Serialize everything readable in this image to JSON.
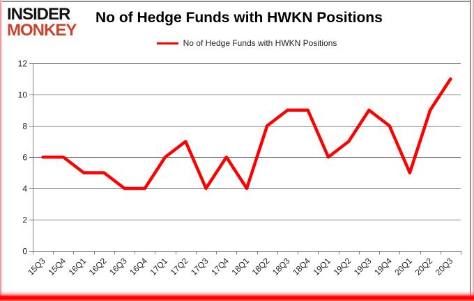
{
  "logo": {
    "line1": "INSIDER",
    "line2": "MONKEY",
    "line1_color": "#141414",
    "line2_color": "#c7452e"
  },
  "header": {
    "title": "No of Hedge Funds with HWKN Positions"
  },
  "legend": {
    "label": "No of Hedge Funds with HWKN Positions",
    "color": "#ff0000"
  },
  "chart_data": {
    "type": "line",
    "title": "No of Hedge Funds with HWKN Positions",
    "categories": [
      "15Q3",
      "15Q4",
      "16Q1",
      "16Q2",
      "16Q3",
      "16Q4",
      "17Q1",
      "17Q2",
      "17Q3",
      "17Q4",
      "18Q1",
      "18Q2",
      "18Q3",
      "18Q4",
      "19Q1",
      "19Q2",
      "19Q3",
      "19Q4",
      "20Q1",
      "20Q2",
      "20Q3"
    ],
    "series": [
      {
        "name": "No of Hedge Funds with HWKN Positions",
        "color": "#ff0000",
        "values": [
          6,
          6,
          5,
          5,
          4,
          4,
          6,
          7,
          4,
          6,
          4,
          8,
          9,
          9,
          6,
          7,
          9,
          8,
          5,
          9,
          11
        ]
      }
    ],
    "xlabel": "",
    "ylabel": "",
    "ylim": [
      0,
      12
    ],
    "ytick_step": 2,
    "yticks": [
      0,
      2,
      4,
      6,
      8,
      10,
      12
    ],
    "grid": true,
    "legend_position": "top-center",
    "x_label_rotation": -45,
    "gridline_color": "#808080",
    "axis_text_color": "#1f1f1f"
  }
}
